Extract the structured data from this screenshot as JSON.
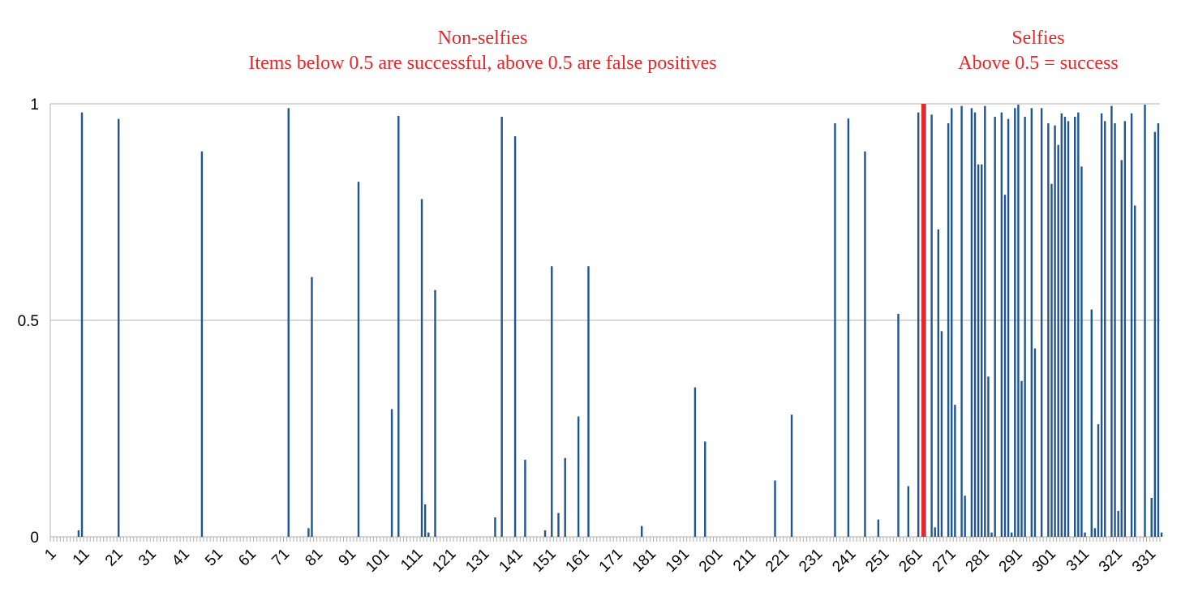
{
  "annotations": {
    "left_title": "Non-selfies",
    "left_subtitle": "Items below 0.5 are successful, above 0.5 are false positives",
    "right_title": "Selfies",
    "right_subtitle": "Above 0.5 = success"
  },
  "colors": {
    "bar": "#1f5591",
    "divider": "#e8272a",
    "grid": "#c0c0c0",
    "annotation": "#e8272a"
  },
  "chart_data": {
    "type": "bar",
    "title": "",
    "xlabel": "",
    "ylabel": "",
    "x_range": [
      1,
      333
    ],
    "ylim": [
      0,
      1
    ],
    "y_ticks": [
      0,
      0.5,
      1
    ],
    "y_tick_labels": [
      "0",
      "0.5",
      "1"
    ],
    "x_tick_labels": [
      "1",
      "11",
      "21",
      "31",
      "41",
      "51",
      "61",
      "71",
      "81",
      "91",
      "101",
      "111",
      "121",
      "131",
      "141",
      "151",
      "161",
      "171",
      "181",
      "191",
      "201",
      "211",
      "221",
      "231",
      "241",
      "251",
      "261",
      "271",
      "281",
      "291",
      "301",
      "311",
      "321",
      "331"
    ],
    "grid": true,
    "divider_after_item": 262,
    "nonzero_values": [
      [
        9,
        0.015
      ],
      [
        10,
        0.98
      ],
      [
        21,
        0.965
      ],
      [
        46,
        0.89
      ],
      [
        72,
        0.99
      ],
      [
        78,
        0.02
      ],
      [
        79,
        0.6
      ],
      [
        93,
        0.82
      ],
      [
        103,
        0.295
      ],
      [
        105,
        0.972
      ],
      [
        112,
        0.78
      ],
      [
        113,
        0.075
      ],
      [
        114,
        0.01
      ],
      [
        116,
        0.57
      ],
      [
        134,
        0.045
      ],
      [
        136,
        0.97
      ],
      [
        140,
        0.925
      ],
      [
        143,
        0.178
      ],
      [
        149,
        0.015
      ],
      [
        151,
        0.625
      ],
      [
        153,
        0.055
      ],
      [
        155,
        0.182
      ],
      [
        159,
        0.278
      ],
      [
        162,
        0.625
      ],
      [
        178,
        0.025
      ],
      [
        194,
        0.345
      ],
      [
        197,
        0.22
      ],
      [
        218,
        0.13
      ],
      [
        223,
        0.282
      ],
      [
        236,
        0.955
      ],
      [
        240,
        0.966
      ],
      [
        245,
        0.89
      ],
      [
        249,
        0.04
      ],
      [
        255,
        0.515
      ],
      [
        258,
        0.117
      ],
      [
        261,
        0.98
      ],
      [
        263,
        1.0
      ],
      [
        265,
        0.975
      ],
      [
        266,
        0.022
      ],
      [
        267,
        0.71
      ],
      [
        268,
        0.475
      ],
      [
        270,
        0.955
      ],
      [
        271,
        0.99
      ],
      [
        272,
        0.305
      ],
      [
        274,
        0.995
      ],
      [
        275,
        0.095
      ],
      [
        277,
        0.99
      ],
      [
        278,
        0.98
      ],
      [
        279,
        0.86
      ],
      [
        280,
        0.86
      ],
      [
        281,
        0.995
      ],
      [
        282,
        0.37
      ],
      [
        283,
        0.01
      ],
      [
        284,
        0.97
      ],
      [
        286,
        0.98
      ],
      [
        287,
        0.79
      ],
      [
        288,
        0.965
      ],
      [
        289,
        0.01
      ],
      [
        290,
        0.99
      ],
      [
        291,
        0.998
      ],
      [
        292,
        0.36
      ],
      [
        293,
        0.97
      ],
      [
        295,
        0.99
      ],
      [
        296,
        0.435
      ],
      [
        298,
        0.99
      ],
      [
        300,
        0.955
      ],
      [
        301,
        0.815
      ],
      [
        302,
        0.95
      ],
      [
        303,
        0.905
      ],
      [
        304,
        0.978
      ],
      [
        305,
        0.97
      ],
      [
        306,
        0.96
      ],
      [
        308,
        0.97
      ],
      [
        309,
        0.98
      ],
      [
        310,
        0.855
      ],
      [
        311,
        0.01
      ],
      [
        313,
        0.525
      ],
      [
        314,
        0.02
      ],
      [
        315,
        0.26
      ],
      [
        316,
        0.978
      ],
      [
        317,
        0.96
      ],
      [
        319,
        0.995
      ],
      [
        320,
        0.955
      ],
      [
        321,
        0.06
      ],
      [
        322,
        0.87
      ],
      [
        323,
        0.96
      ],
      [
        325,
        0.978
      ],
      [
        326,
        0.765
      ],
      [
        329,
        0.998
      ],
      [
        331,
        0.09
      ],
      [
        332,
        0.935
      ],
      [
        333,
        0.955
      ],
      [
        334,
        0.01
      ]
    ]
  }
}
